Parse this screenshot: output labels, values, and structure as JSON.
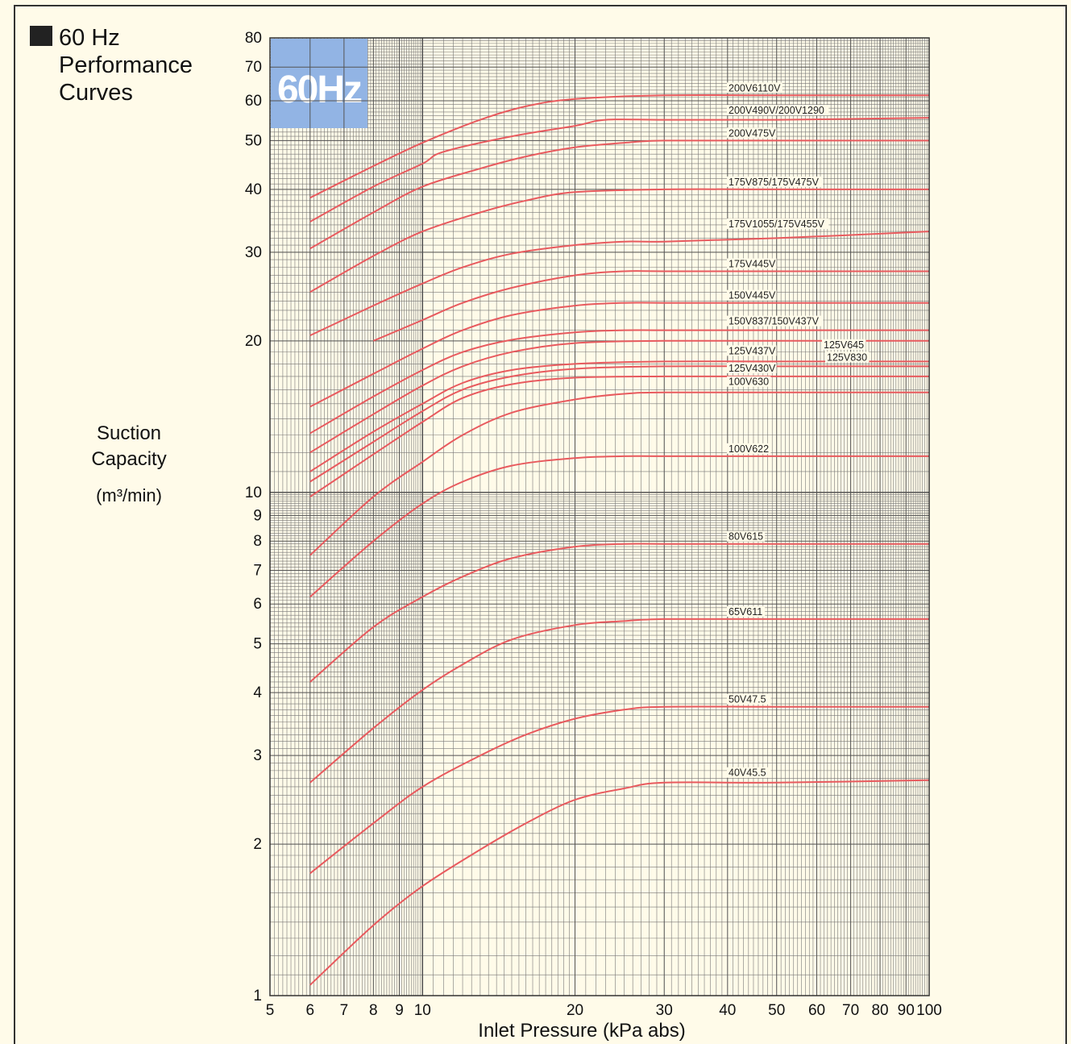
{
  "heading": {
    "title": "60 Hz Performance Curves"
  },
  "chart_data": {
    "type": "line",
    "title": "60 Hz Performance Curves",
    "badge": "60Hz",
    "xlabel": "Inlet Pressure (kPa abs)",
    "ylabel_line1": "Suction",
    "ylabel_line2": "Capacity",
    "ylabel_unit": "(m³/min)",
    "x_scale": "log",
    "y_scale": "log",
    "xlim": [
      5,
      100
    ],
    "ylim": [
      1,
      80
    ],
    "grid": true,
    "x_ticks": [
      5,
      6,
      7,
      8,
      9,
      10,
      20,
      30,
      40,
      50,
      60,
      70,
      80,
      90,
      100
    ],
    "y_ticks": [
      1,
      2,
      3,
      4,
      5,
      6,
      7,
      8,
      9,
      10,
      20,
      30,
      40,
      50,
      60,
      70,
      80
    ],
    "colors": {
      "curve": "#e85a5e",
      "grid": "#777777",
      "badge": "#92b4e4",
      "background": "#fffbe9"
    },
    "series": [
      {
        "name": "200V6110V",
        "x": [
          6,
          8,
          10,
          13,
          16,
          20,
          30,
          50,
          100
        ],
        "y": [
          38.5,
          44.5,
          49.5,
          55,
          58.5,
          60.5,
          61.5,
          61.5,
          61.5
        ]
      },
      {
        "name": "200V490V/200V1290",
        "x": [
          6,
          8,
          10,
          11,
          15,
          20,
          23,
          30,
          50,
          100
        ],
        "y": [
          34.5,
          40.5,
          45,
          47.5,
          51,
          53.5,
          55,
          55,
          55,
          55.5
        ]
      },
      {
        "name": "200V475V",
        "x": [
          6,
          8,
          10,
          13,
          16,
          20,
          25,
          30,
          50,
          100
        ],
        "y": [
          30.5,
          36,
          40.5,
          44,
          46.5,
          48.5,
          49.5,
          50,
          50,
          50
        ]
      },
      {
        "name": "175V875/175V475V",
        "x": [
          6,
          8,
          10,
          13,
          16,
          20,
          30,
          50,
          100
        ],
        "y": [
          25,
          29.5,
          33,
          36,
          38,
          39.5,
          40,
          40,
          40
        ]
      },
      {
        "name": "175V1055/175V455V",
        "x": [
          6,
          8,
          10,
          12,
          15,
          20,
          25,
          30,
          50,
          100
        ],
        "y": [
          20.5,
          23.5,
          26,
          28,
          29.8,
          31,
          31.5,
          31.5,
          32,
          33
        ]
      },
      {
        "name": "175V445V",
        "x": [
          8,
          10,
          12,
          15,
          20,
          25,
          30,
          50,
          100
        ],
        "y": [
          20,
          22,
          23.8,
          25.5,
          27,
          27.5,
          27.5,
          27.5,
          27.5
        ]
      },
      {
        "name": "150V445V",
        "x": [
          6,
          8,
          10,
          12,
          15,
          20,
          25,
          30,
          50,
          100
        ],
        "y": [
          14.8,
          17.2,
          19.3,
          21,
          22.5,
          23.5,
          23.8,
          23.8,
          23.8,
          23.8
        ]
      },
      {
        "name": "150V837/150V437V",
        "x": [
          6,
          8,
          10,
          12,
          15,
          20,
          25,
          30,
          50,
          100
        ],
        "y": [
          13.1,
          15.5,
          17.5,
          19,
          20.1,
          20.8,
          21,
          21,
          21,
          21
        ]
      },
      {
        "name": "125V645",
        "x": [
          6,
          8,
          10,
          12,
          15,
          20,
          30,
          50,
          100
        ],
        "y": [
          12,
          14.3,
          16.3,
          17.8,
          19,
          19.8,
          20,
          20,
          20
        ]
      },
      {
        "name": "125V437V",
        "x": [
          6,
          8,
          10,
          12,
          15,
          20,
          30,
          50,
          100
        ],
        "y": [
          11,
          13.2,
          15,
          16.5,
          17.5,
          18,
          18.2,
          18.2,
          18.2
        ]
      },
      {
        "name": "125V830",
        "x": [
          6,
          8,
          10,
          12,
          15,
          20,
          30,
          50,
          100
        ],
        "y": [
          10.5,
          12.6,
          14.5,
          16,
          17,
          17.6,
          17.8,
          17.8,
          17.8
        ]
      },
      {
        "name": "125V430V",
        "x": [
          6,
          8,
          10,
          12,
          15,
          20,
          30,
          50,
          100
        ],
        "y": [
          9.8,
          11.9,
          13.8,
          15.4,
          16.4,
          16.9,
          17,
          17,
          17
        ]
      },
      {
        "name": "100V630",
        "x": [
          6,
          8,
          10,
          12,
          15,
          20,
          25,
          30,
          50,
          100
        ],
        "y": [
          7.5,
          9.8,
          11.5,
          13,
          14.4,
          15.3,
          15.7,
          15.8,
          15.8,
          15.8
        ]
      },
      {
        "name": "100V622",
        "x": [
          6,
          8,
          10,
          12,
          15,
          20,
          25,
          30,
          50,
          100
        ],
        "y": [
          6.2,
          8,
          9.5,
          10.5,
          11.3,
          11.7,
          11.8,
          11.8,
          11.8,
          11.8
        ]
      },
      {
        "name": "80V615",
        "x": [
          6,
          8,
          10,
          12,
          15,
          20,
          25,
          30,
          50,
          100
        ],
        "y": [
          4.2,
          5.4,
          6.2,
          6.8,
          7.4,
          7.8,
          7.9,
          7.9,
          7.9,
          7.9
        ]
      },
      {
        "name": "65V611",
        "x": [
          6,
          8,
          10,
          12,
          15,
          20,
          25,
          30,
          50,
          100
        ],
        "y": [
          2.65,
          3.4,
          4.05,
          4.55,
          5.1,
          5.45,
          5.55,
          5.6,
          5.6,
          5.6
        ]
      },
      {
        "name": "50V47.5",
        "x": [
          6,
          8,
          10,
          13,
          16,
          20,
          25,
          30,
          50,
          100
        ],
        "y": [
          1.75,
          2.2,
          2.6,
          3,
          3.3,
          3.55,
          3.7,
          3.75,
          3.75,
          3.75
        ]
      },
      {
        "name": "40V45.5",
        "x": [
          6,
          8,
          10,
          13,
          16,
          20,
          25,
          30,
          50,
          100
        ],
        "y": [
          1.05,
          1.38,
          1.65,
          1.95,
          2.2,
          2.45,
          2.58,
          2.65,
          2.65,
          2.68
        ]
      }
    ]
  }
}
